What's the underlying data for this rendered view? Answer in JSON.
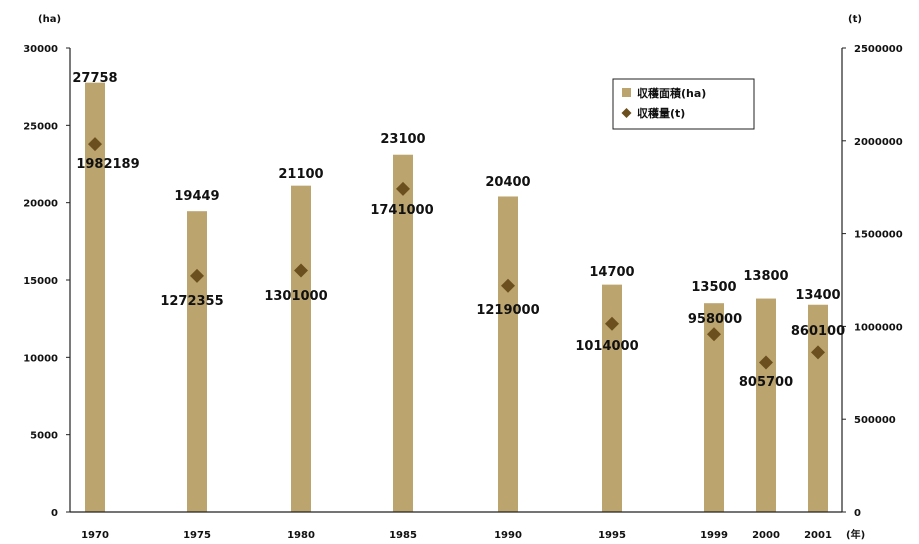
{
  "chart_data": {
    "type": "bar",
    "x_tick_labels": [
      "1970",
      "1975",
      "1980",
      "1985",
      "1990",
      "1995",
      "1999",
      "2000",
      "2001"
    ],
    "x_unit_label": "(年)",
    "series": [
      {
        "name": "収穫面積(ha)",
        "type": "bar",
        "axis": "left",
        "values": [
          27758,
          19449,
          21100,
          23100,
          20400,
          14700,
          13500,
          13800,
          13400
        ],
        "labels": [
          "27758",
          "19449",
          "21100",
          "23100",
          "20400",
          "14700",
          "13500",
          "13800",
          "13400"
        ]
      },
      {
        "name": "収穫量(t)",
        "type": "scatter",
        "axis": "right",
        "values": [
          1982189,
          1272355,
          1301000,
          1741000,
          1219000,
          1014000,
          958000,
          805700,
          860100
        ],
        "labels": [
          "1982189",
          "1272355",
          "1301000",
          "1741000",
          "1219000",
          "1014000",
          "958000",
          "805700",
          "860100"
        ]
      }
    ],
    "y_left": {
      "unit_label": "(ha)",
      "ylim": [
        0,
        30000
      ],
      "ticks": [
        0,
        5000,
        10000,
        15000,
        20000,
        25000,
        30000
      ],
      "tick_labels": [
        "0",
        "5000",
        "10000",
        "15000",
        "20000",
        "25000",
        "30000"
      ]
    },
    "y_right": {
      "unit_label": "(t)",
      "ylim": [
        0,
        2500000
      ],
      "ticks": [
        0,
        500000,
        1000000,
        1500000,
        2000000,
        2500000
      ],
      "tick_labels": [
        "0",
        "500000",
        "1000000",
        "1500000",
        "2000000",
        "2500000"
      ]
    },
    "grid": false,
    "legend_position": "top-right",
    "colors": {
      "bar": "#bba46e",
      "marker": "#6b4f1e",
      "axis": "#222222"
    }
  }
}
